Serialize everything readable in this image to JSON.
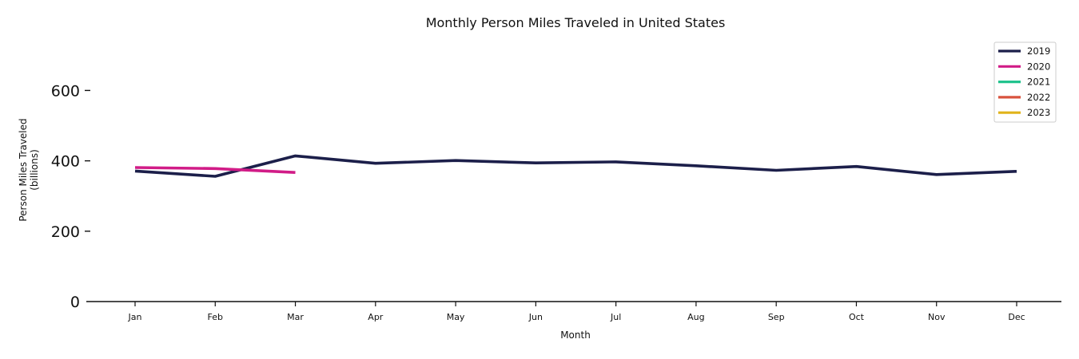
{
  "chart_data": {
    "type": "line",
    "title": "Monthly Person Miles Traveled in United States",
    "xlabel": "Month",
    "ylabel": [
      "Person Miles Traveled",
      "(billions)"
    ],
    "categories": [
      "Jan",
      "Feb",
      "Mar",
      "Apr",
      "May",
      "Jun",
      "Jul",
      "Aug",
      "Sep",
      "Oct",
      "Nov",
      "Dec"
    ],
    "yticks": [
      0,
      200,
      400,
      600
    ],
    "ylim": [
      0,
      750
    ],
    "grid": false,
    "legend_position": "top-right",
    "series": [
      {
        "name": "2019",
        "color": "#1c1f4a",
        "values": [
          371,
          356,
          414,
          393,
          401,
          394,
          397,
          386,
          373,
          384,
          361,
          370
        ]
      },
      {
        "name": "2020",
        "color": "#d11c87",
        "values": [
          381,
          378,
          367,
          null,
          null,
          null,
          null,
          null,
          null,
          null,
          null,
          null
        ]
      },
      {
        "name": "2021",
        "color": "#22c38e",
        "values": [
          null,
          null,
          null,
          null,
          null,
          null,
          null,
          null,
          null,
          null,
          null,
          null
        ]
      },
      {
        "name": "2022",
        "color": "#d9533f",
        "values": [
          null,
          null,
          null,
          null,
          null,
          null,
          null,
          null,
          null,
          null,
          null,
          null
        ]
      },
      {
        "name": "2023",
        "color": "#e0b31a",
        "values": [
          null,
          null,
          null,
          null,
          null,
          null,
          null,
          null,
          null,
          null,
          null,
          null
        ]
      }
    ]
  }
}
